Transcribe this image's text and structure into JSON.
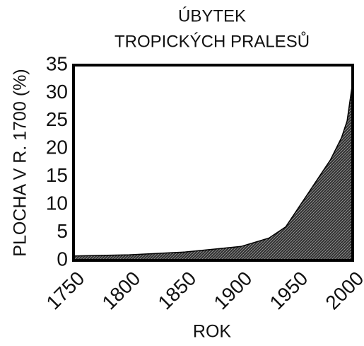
{
  "chart_data": {
    "type": "area",
    "title": [
      "ÚBYTEK",
      "TROPICKÝCH PRALESŮ"
    ],
    "y_label": "PLOCHA V R. 1700 (%)",
    "x_label": "ROK",
    "x": [
      1750,
      1800,
      1850,
      1875,
      1900,
      1925,
      1940,
      1950,
      1960,
      1970,
      1980,
      1990,
      1995,
      2000
    ],
    "values": [
      0.8,
      1,
      1.5,
      2,
      2.5,
      4,
      6,
      9,
      12,
      15,
      18,
      22,
      25,
      32
    ],
    "color": "#000000",
    "xlim": [
      1750,
      2000
    ],
    "xticks": [
      1750,
      1800,
      1850,
      1900,
      1950,
      2000
    ],
    "ylim": [
      0,
      35
    ],
    "yticks": [
      0,
      5,
      10,
      15,
      20,
      25,
      30,
      35
    ],
    "grid": false
  }
}
